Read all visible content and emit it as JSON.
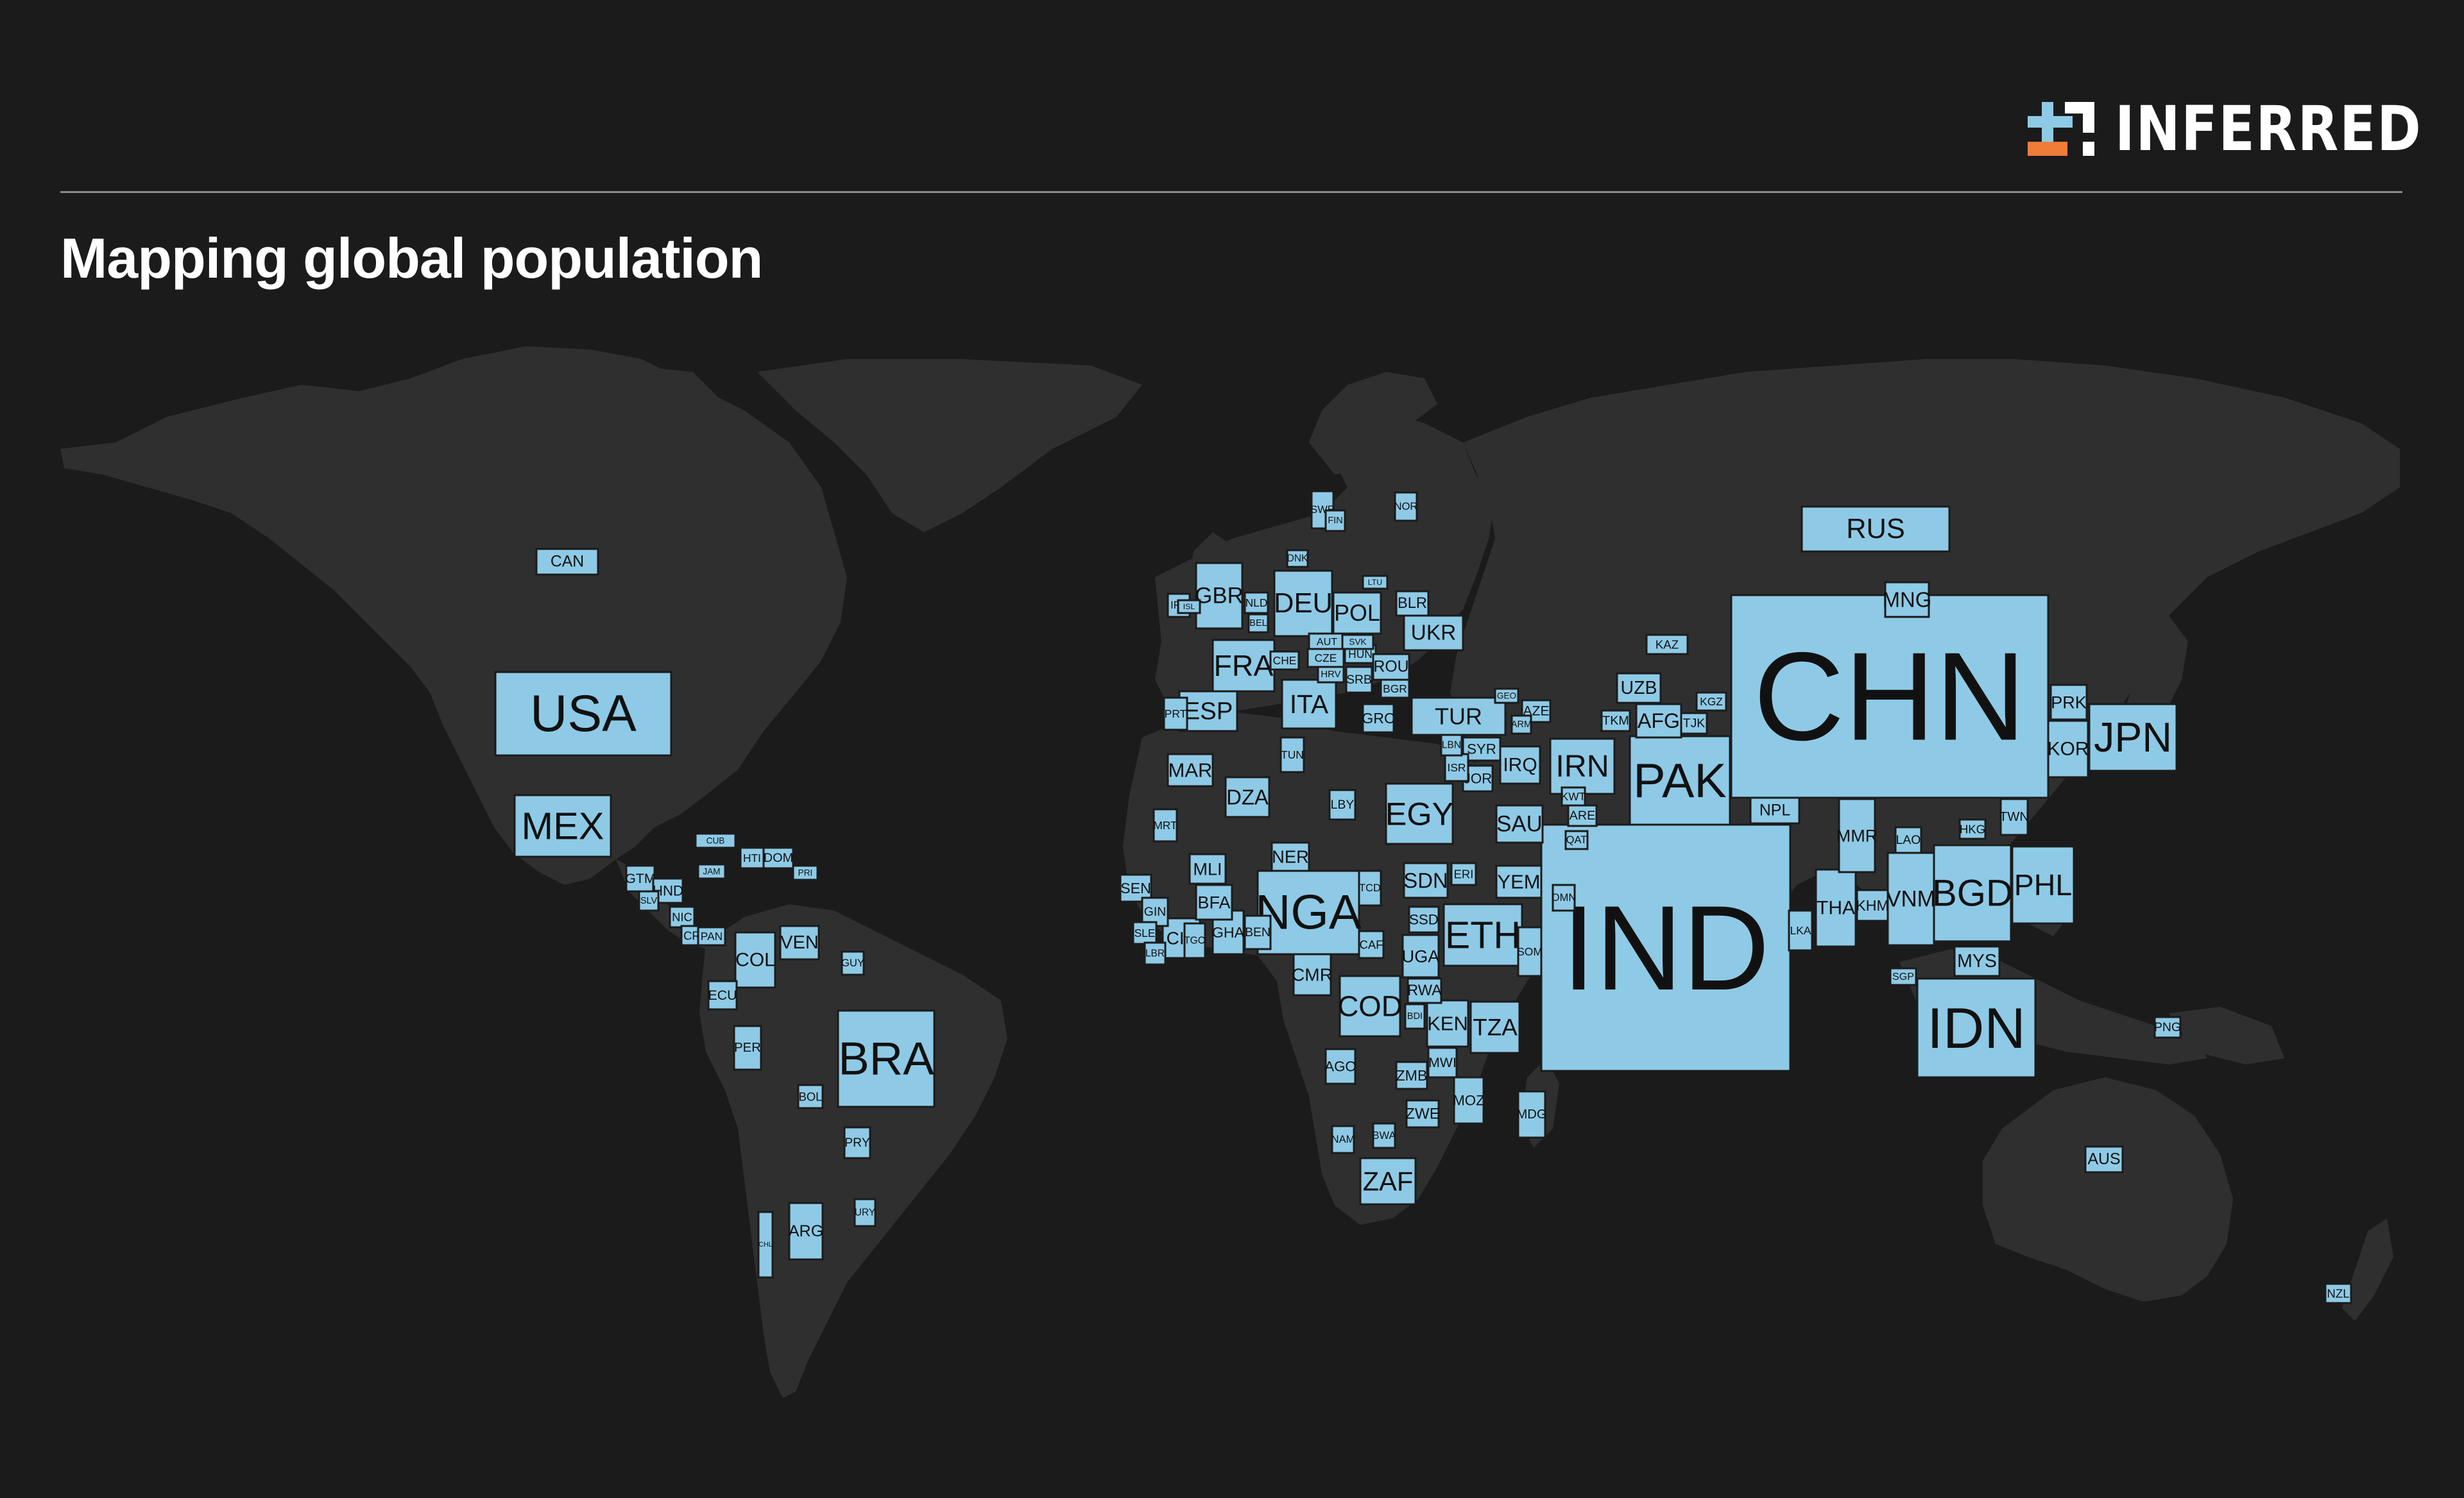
{
  "header": {
    "brand": "INFERRED",
    "title": "Mapping global population"
  },
  "colors": {
    "background": "#1b1b1b",
    "land": "#2f2f2f",
    "country_box": "#8ecae6",
    "box_text": "#111111",
    "brand_orange": "#f07c3a",
    "brand_blue": "#8ecae6"
  },
  "icons": {
    "logo": "inferred-logo-icon"
  },
  "map": {
    "encoding": "box area proportional to population",
    "countries": [
      {
        "code": "RUS"
      },
      {
        "code": "CHN"
      },
      {
        "code": "IND"
      },
      {
        "code": "USA"
      },
      {
        "code": "CAN"
      },
      {
        "code": "MEX"
      },
      {
        "code": "PAK"
      },
      {
        "code": "IRN"
      },
      {
        "code": "JPN"
      },
      {
        "code": "KOR"
      },
      {
        "code": "PRK"
      },
      {
        "code": "IDN"
      },
      {
        "code": "BGD"
      },
      {
        "code": "PHL"
      },
      {
        "code": "VNM"
      },
      {
        "code": "THA"
      },
      {
        "code": "MYS"
      },
      {
        "code": "BRA"
      },
      {
        "code": "COL"
      },
      {
        "code": "VEN"
      },
      {
        "code": "PER"
      },
      {
        "code": "ARG"
      },
      {
        "code": "NGA"
      },
      {
        "code": "ETH"
      },
      {
        "code": "EGY"
      },
      {
        "code": "COD"
      },
      {
        "code": "ZAF"
      },
      {
        "code": "TZA"
      },
      {
        "code": "KEN"
      },
      {
        "code": "UGA"
      },
      {
        "code": "SDN"
      },
      {
        "code": "DZA"
      },
      {
        "code": "MAR"
      },
      {
        "code": "TUR"
      },
      {
        "code": "DEU"
      },
      {
        "code": "GBR"
      },
      {
        "code": "FRA"
      },
      {
        "code": "ITA"
      },
      {
        "code": "ESP"
      },
      {
        "code": "POL"
      },
      {
        "code": "UKR"
      },
      {
        "code": "IRQ"
      },
      {
        "code": "SAU"
      },
      {
        "code": "YEM"
      },
      {
        "code": "AFG"
      },
      {
        "code": "UZB"
      },
      {
        "code": "KAZ"
      },
      {
        "code": "NPL"
      },
      {
        "code": "MMR"
      },
      {
        "code": "AUS"
      },
      {
        "code": "AGO"
      },
      {
        "code": "ZMB"
      },
      {
        "code": "ZWE"
      },
      {
        "code": "MOZ"
      },
      {
        "code": "MDG"
      },
      {
        "code": "CMR"
      },
      {
        "code": "CIV"
      },
      {
        "code": "GHA"
      },
      {
        "code": "BFA"
      },
      {
        "code": "MLI"
      },
      {
        "code": "NER"
      },
      {
        "code": "SEN"
      },
      {
        "code": "GIN"
      },
      {
        "code": "CUB"
      },
      {
        "code": "HTI"
      },
      {
        "code": "DOM"
      },
      {
        "code": "GTM"
      },
      {
        "code": "HND"
      },
      {
        "code": "SLV"
      },
      {
        "code": "ECU"
      },
      {
        "code": "BOL"
      },
      {
        "code": "CHL"
      },
      {
        "code": "NLD"
      },
      {
        "code": "BEL"
      },
      {
        "code": "CHE"
      },
      {
        "code": "AUT"
      },
      {
        "code": "CZE"
      },
      {
        "code": "HUN"
      },
      {
        "code": "SVK"
      },
      {
        "code": "ROU"
      },
      {
        "code": "BGR"
      },
      {
        "code": "GRC"
      },
      {
        "code": "BLR"
      },
      {
        "code": "SYR"
      },
      {
        "code": "JOR"
      },
      {
        "code": "ARE"
      },
      {
        "code": "AZE"
      },
      {
        "code": "TJK"
      },
      {
        "code": "TKM"
      },
      {
        "code": "KGZ"
      },
      {
        "code": "KHM"
      },
      {
        "code": "LKA"
      },
      {
        "code": "SGP"
      },
      {
        "code": "TWN"
      },
      {
        "code": "HKG"
      },
      {
        "code": "LAO"
      },
      {
        "code": "SSD"
      },
      {
        "code": "SOM"
      },
      {
        "code": "RWA"
      },
      {
        "code": "BDI"
      },
      {
        "code": "MWI"
      },
      {
        "code": "TCD"
      },
      {
        "code": "CAF"
      },
      {
        "code": "TUN"
      },
      {
        "code": "LBY"
      },
      {
        "code": "PNG"
      },
      {
        "code": "NZL"
      },
      {
        "code": "PRY"
      },
      {
        "code": "URY"
      },
      {
        "code": "SWE"
      },
      {
        "code": "NOR"
      },
      {
        "code": "FIN"
      },
      {
        "code": "DNK"
      },
      {
        "code": "IRL"
      },
      {
        "code": "PRT"
      },
      {
        "code": "SRB"
      },
      {
        "code": "HRV"
      },
      {
        "code": "LTU"
      },
      {
        "code": "ISR"
      },
      {
        "code": "LBN"
      },
      {
        "code": "OMN"
      },
      {
        "code": "KWT"
      },
      {
        "code": "GEO"
      },
      {
        "code": "ARM"
      },
      {
        "code": "NAM"
      },
      {
        "code": "BWA"
      },
      {
        "code": "TGO"
      },
      {
        "code": "BEN"
      },
      {
        "code": "SLE"
      },
      {
        "code": "LBR"
      },
      {
        "code": "MRT"
      },
      {
        "code": "ERI"
      },
      {
        "code": "PRI"
      },
      {
        "code": "JAM"
      },
      {
        "code": "NIC"
      },
      {
        "code": "CRI"
      },
      {
        "code": "PAN"
      },
      {
        "code": "GUY"
      },
      {
        "code": "MNG"
      },
      {
        "code": "ISL"
      },
      {
        "code": "QAT"
      }
    ]
  }
}
